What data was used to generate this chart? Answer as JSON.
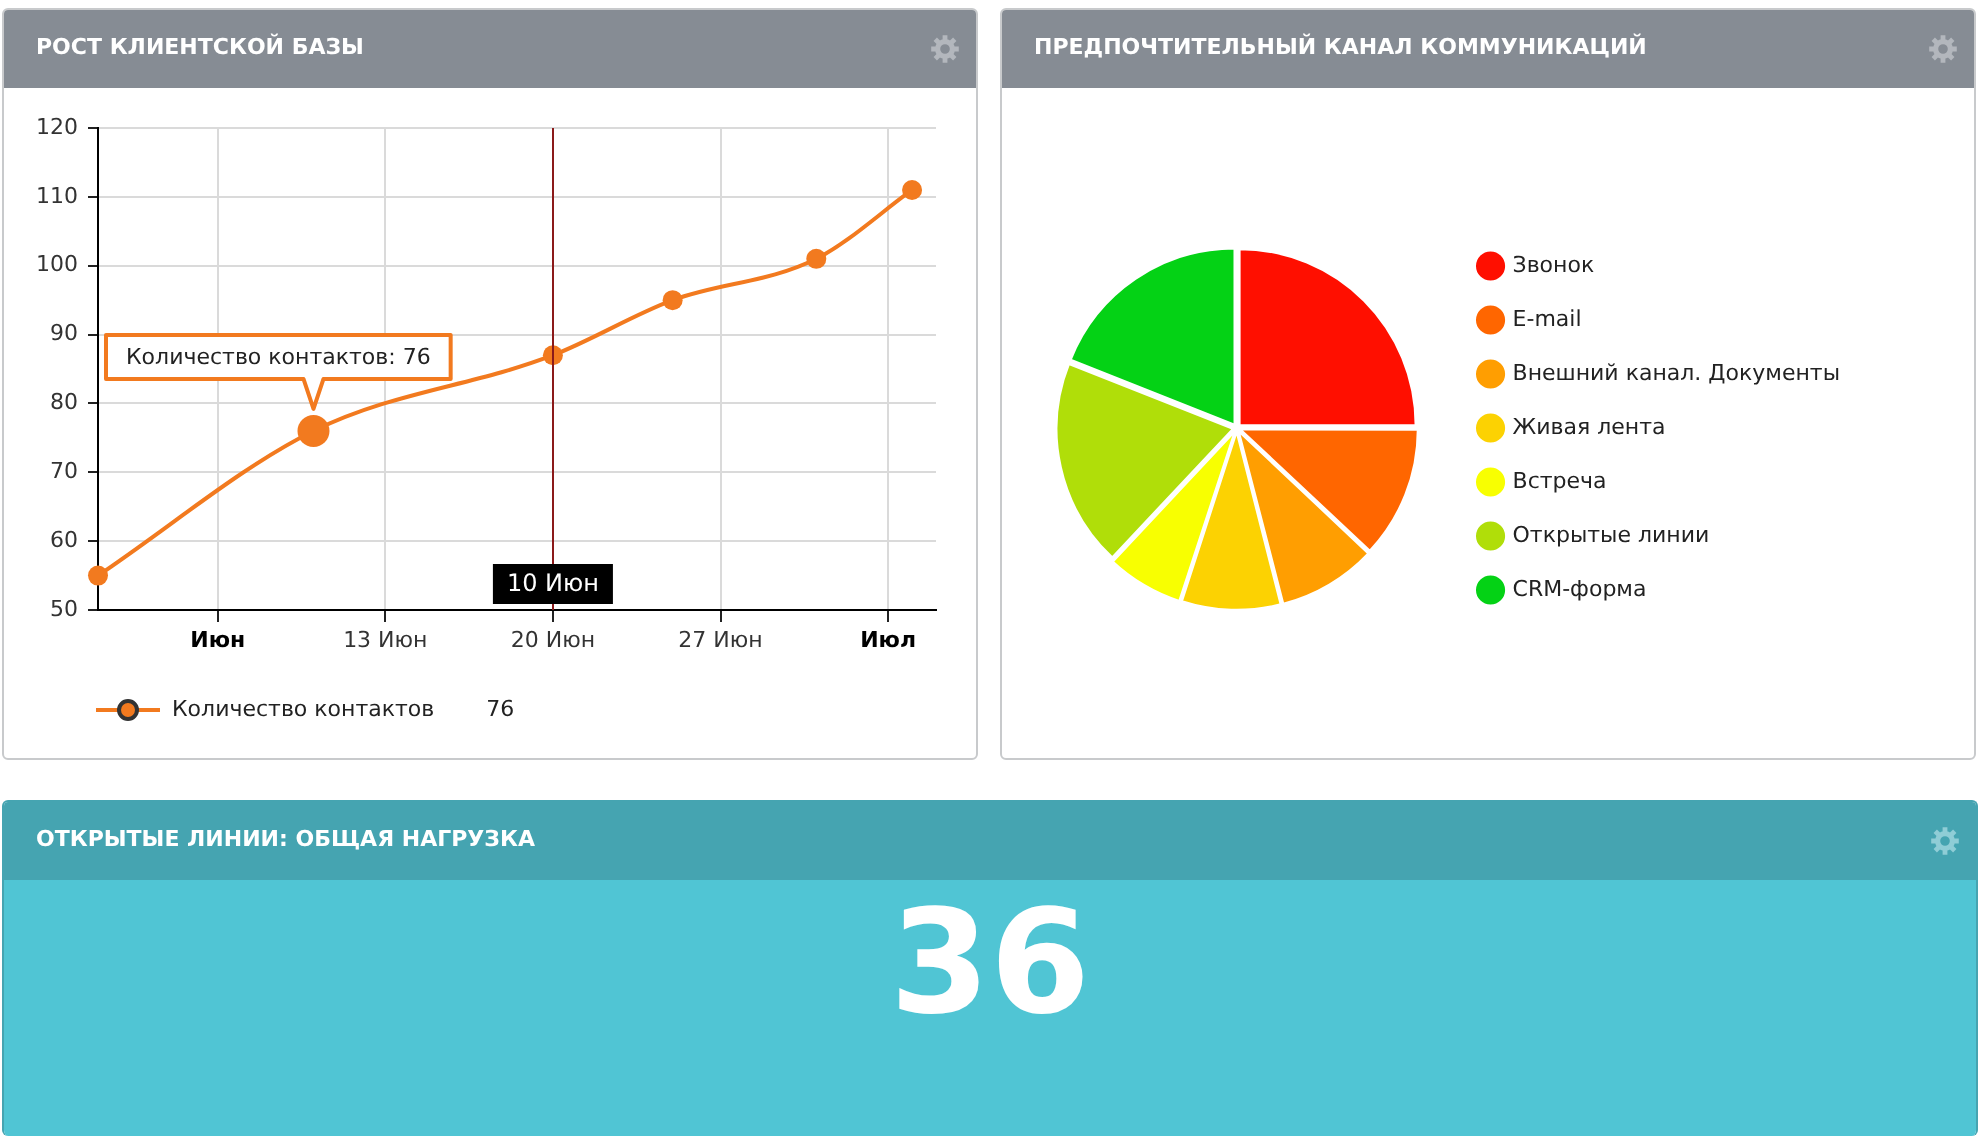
{
  "chart_data": [
    {
      "type": "line",
      "title": "РОСТ КЛИЕНТСКОЙ БАЗЫ",
      "x": [
        "--06-01",
        "--06-10",
        "--06-20",
        "--06-25",
        "--07-01",
        "--07-05"
      ],
      "series": [
        {
          "name": "Количество контактов",
          "color": "#f27a1f",
          "values": [
            55,
            76,
            87,
            95,
            101,
            111
          ]
        }
      ],
      "xlim": [
        "--06-01",
        "--07-06"
      ],
      "xticks": [
        {
          "value": "--06-06",
          "label": "Июн"
        },
        {
          "value": "--06-13",
          "label": "13 Июн"
        },
        {
          "value": "--06-20",
          "label": "20 Июн"
        },
        {
          "value": "--06-27",
          "label": "27 Июн"
        },
        {
          "value": "--07-04",
          "label": "Июл"
        }
      ],
      "ylim": [
        50,
        120
      ],
      "yticks": [
        50,
        60,
        70,
        80,
        90,
        100,
        110,
        120
      ],
      "grid": true,
      "marker": "circle",
      "legend": "bottom",
      "ref_lines": [
        {
          "axis": "x",
          "value": "--06-20",
          "label": "10 Июн",
          "color": "#8b1a1a"
        }
      ],
      "annotations": [
        {
          "text": "Количество контактов: 76",
          "x": "--06-10",
          "y": 76
        },
        "76"
      ]
    },
    {
      "type": "pie",
      "title": "ПРЕДПОЧТИТЕЛЬНЫЙ КАНАЛ КОММУНИКАЦИЙ",
      "categories": [
        "Звонок",
        "E-mail",
        "Внешний канал. Документы",
        "Живая лента",
        "Встреча",
        "Открытые линии",
        "CRM-форма"
      ],
      "values": [
        25,
        12,
        9,
        9,
        7,
        19,
        19
      ],
      "colors": [
        "#ff0f00",
        "#ff6600",
        "#ff9e01",
        "#fcd202",
        "#f8ff01",
        "#b0de09",
        "#04d215"
      ],
      "legend": "right"
    },
    {
      "type": "other",
      "title": "ОТКРЫТЫЕ ЛИНИИ: ОБЩАЯ НАГРУЗКА",
      "annotations": [
        "36"
      ]
    }
  ]
}
